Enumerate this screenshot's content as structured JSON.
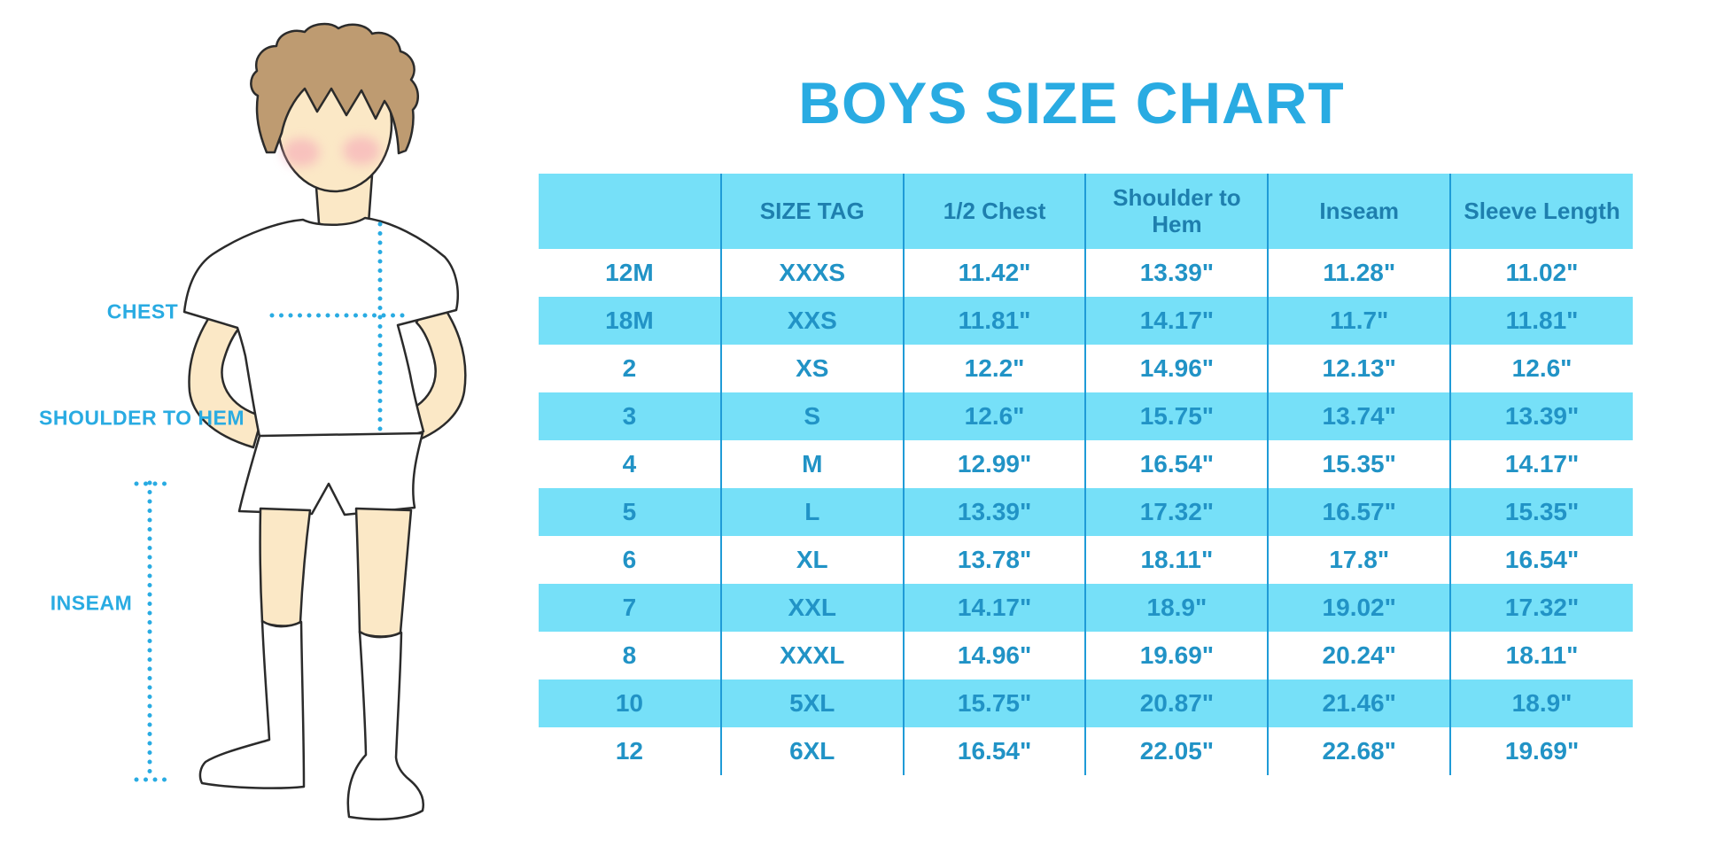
{
  "title": "BOYS SIZE CHART",
  "colors": {
    "accent": "#29ABE2",
    "table_fill": "#76E0F8",
    "divider": "#1F9BD7",
    "header_text": "#1E7FAE",
    "cell_text": "#2193C6",
    "skin": "#FBE8C6",
    "hair": "#BE9B71",
    "outline": "#2B2B2B"
  },
  "diagram": {
    "illustration": "boy-in-tshirt-shorts-and-knee-socks",
    "labels": [
      {
        "id": "chest",
        "text": "CHEST"
      },
      {
        "id": "shoulder-to-hem",
        "text": "SHOULDER TO HEM"
      },
      {
        "id": "inseam",
        "text": "INSEAM"
      }
    ]
  },
  "chart_data": {
    "type": "table",
    "title": "BOYS SIZE CHART",
    "columns": [
      "",
      "SIZE TAG",
      "1/2 Chest",
      "Shoulder to Hem",
      "Inseam",
      "Sleeve Length"
    ],
    "rows": [
      [
        "12M",
        "XXXS",
        "11.42\"",
        "13.39\"",
        "11.28\"",
        "11.02\""
      ],
      [
        "18M",
        "XXS",
        "11.81\"",
        "14.17\"",
        "11.7\"",
        "11.81\""
      ],
      [
        "2",
        "XS",
        "12.2\"",
        "14.96\"",
        "12.13\"",
        "12.6\""
      ],
      [
        "3",
        "S",
        "12.6\"",
        "15.75\"",
        "13.74\"",
        "13.39\""
      ],
      [
        "4",
        "M",
        "12.99\"",
        "16.54\"",
        "15.35\"",
        "14.17\""
      ],
      [
        "5",
        "L",
        "13.39\"",
        "17.32\"",
        "16.57\"",
        "15.35\""
      ],
      [
        "6",
        "XL",
        "13.78\"",
        "18.11\"",
        "17.8\"",
        "16.54\""
      ],
      [
        "7",
        "XXL",
        "14.17\"",
        "18.9\"",
        "19.02\"",
        "17.32\""
      ],
      [
        "8",
        "XXXL",
        "14.96\"",
        "19.69\"",
        "20.24\"",
        "18.11\""
      ],
      [
        "10",
        "5XL",
        "15.75\"",
        "20.87\"",
        "21.46\"",
        "18.9\""
      ],
      [
        "12",
        "6XL",
        "16.54\"",
        "22.05\"",
        "22.68\"",
        "19.69\""
      ]
    ],
    "layout": {
      "header_fill": "#76E0F8",
      "alt_row_fill": "#76E0F8",
      "grid": "vertical-only"
    }
  }
}
